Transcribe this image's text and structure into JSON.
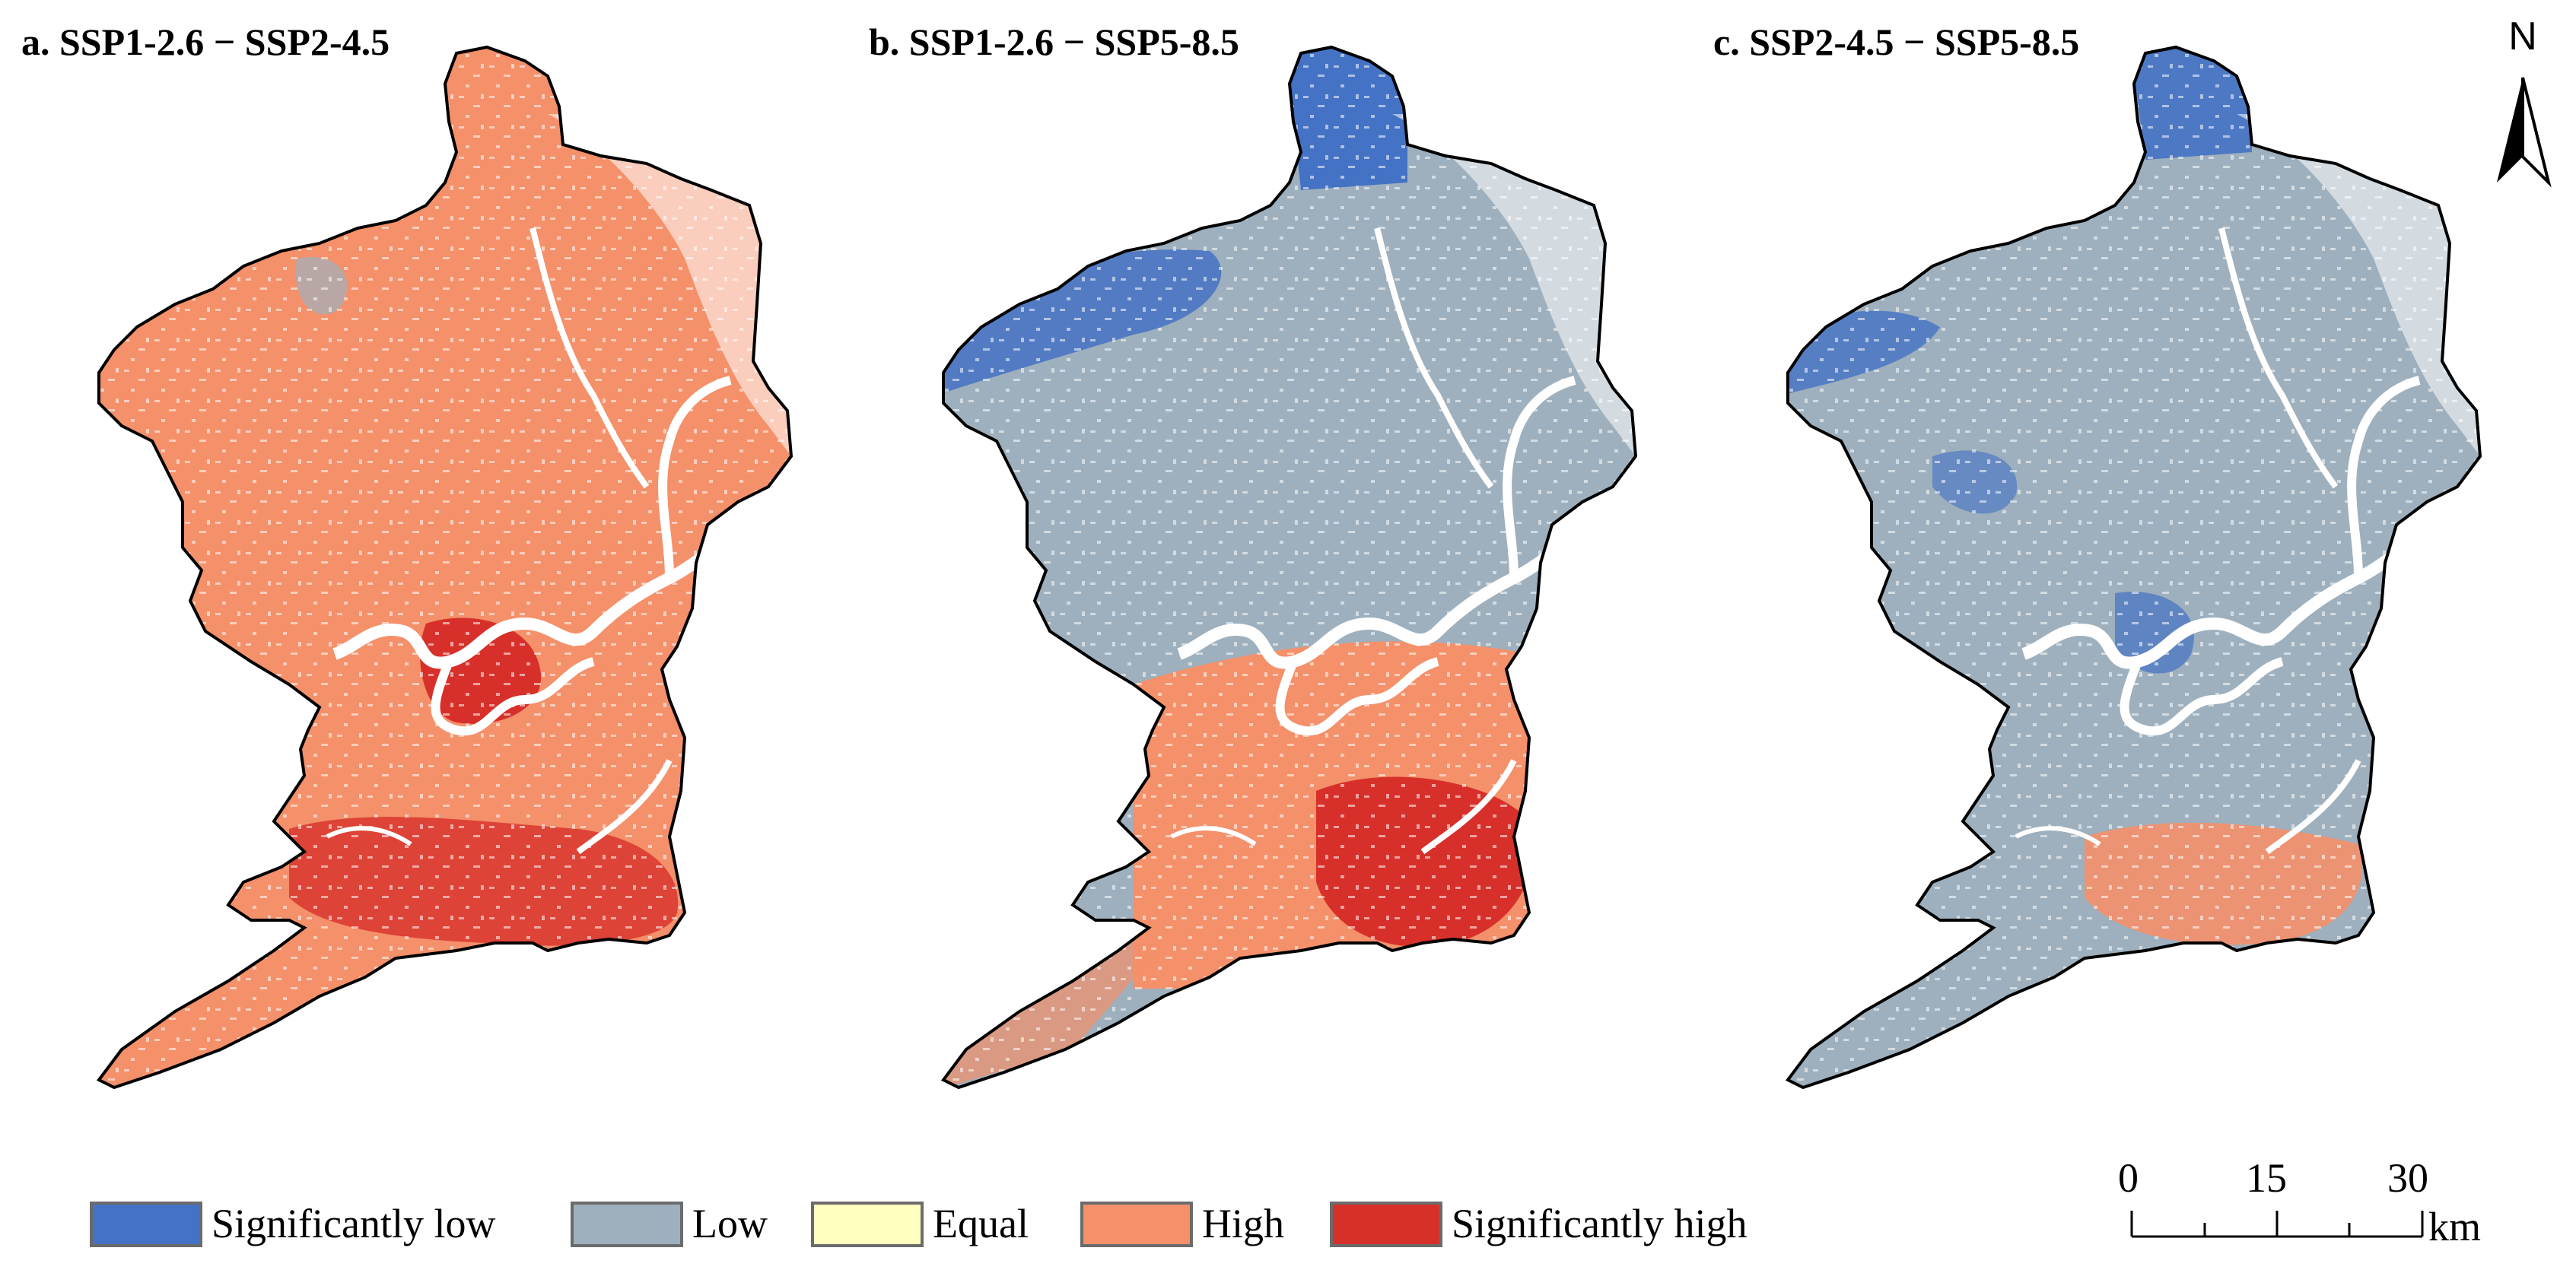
{
  "panels": [
    {
      "title": "a. SSP1-2.6 − SSP2-4.5",
      "dominant": "High",
      "secondary": "Significantly high",
      "minor": "Low"
    },
    {
      "title": "b. SSP1-2.6 − SSP5-8.5",
      "dominant": "Low",
      "secondary": "High",
      "minor": "Significantly low"
    },
    {
      "title": "c. SSP2-4.5 − SSP5-8.5",
      "dominant": "Low",
      "secondary": "Significantly low",
      "minor": "High"
    }
  ],
  "legend": {
    "items": [
      {
        "label": "Significantly low",
        "color": "#4472c4"
      },
      {
        "label": "Low",
        "color": "#9eb0bd"
      },
      {
        "label": "Equal",
        "color": "#ffffc0"
      },
      {
        "label": "High",
        "color": "#f4906a"
      },
      {
        "label": "Significantly high",
        "color": "#d7302a"
      }
    ]
  },
  "north_arrow": {
    "label": "N"
  },
  "scale_bar": {
    "ticks": [
      "0",
      "15",
      "30"
    ],
    "unit": "km"
  },
  "colors": {
    "river": "#ffffff",
    "boundary": "#000000"
  }
}
